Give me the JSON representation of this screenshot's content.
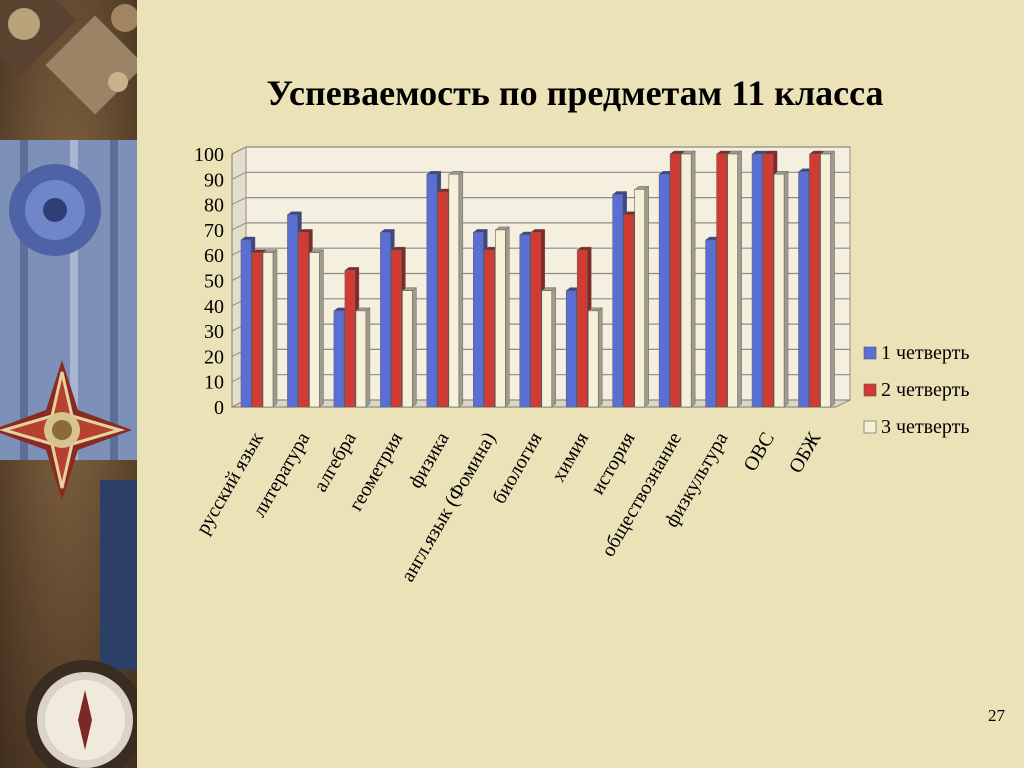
{
  "slide": {
    "title": "Успеваемость по предметам 11 класса",
    "page_number": "27"
  },
  "colors": {
    "background": "#ece2b8",
    "series": [
      "#5a6fd6",
      "#d23a34",
      "#f6f0d6"
    ]
  },
  "chart_data": {
    "type": "bar",
    "title": "",
    "xlabel": "",
    "ylabel": "",
    "ylim": [
      0,
      100
    ],
    "yticks": [
      0,
      10,
      20,
      30,
      40,
      50,
      60,
      70,
      80,
      90,
      100
    ],
    "grid": true,
    "legend_position": "right",
    "categories": [
      "русский язык",
      "литература",
      "алгебра",
      "геометрия",
      "физика",
      "англ.язык (Фомина)",
      "биология",
      "химия",
      "история",
      "обществознание",
      "физкультура",
      "ОВС",
      "ОБЖ"
    ],
    "series": [
      {
        "name": "1 четверть",
        "color": "#5a6fd6",
        "values": [
          66,
          76,
          38,
          69,
          92,
          69,
          68,
          46,
          84,
          92,
          66,
          100,
          93
        ]
      },
      {
        "name": "2 четверть",
        "color": "#d23a34",
        "values": [
          61,
          69,
          54,
          62,
          85,
          62,
          69,
          62,
          76,
          100,
          100,
          100,
          100
        ]
      },
      {
        "name": "3 четверть",
        "color": "#f6f0d6",
        "values": [
          61,
          61,
          38,
          46,
          92,
          70,
          46,
          38,
          86,
          100,
          100,
          92,
          100
        ]
      }
    ]
  }
}
